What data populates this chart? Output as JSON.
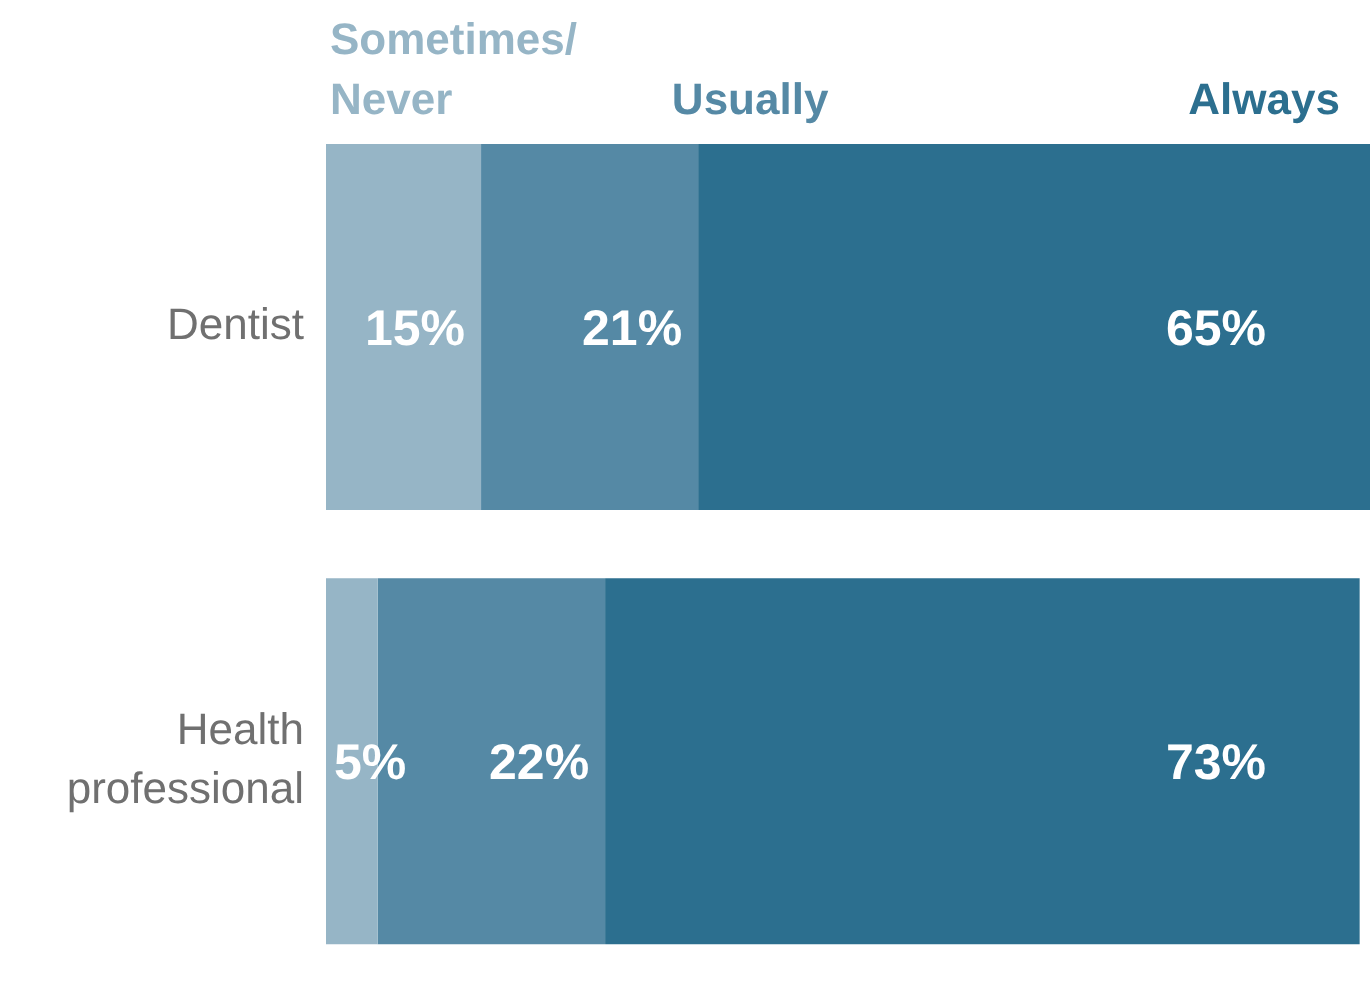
{
  "chart_data": {
    "type": "bar",
    "orientation": "horizontal",
    "stacked": true,
    "categories": [
      "Dentist",
      "Health professional"
    ],
    "series": [
      {
        "name": "Sometimes/Never",
        "color": "#96b5c6",
        "values": [
          15,
          5
        ],
        "value_labels": [
          "15%",
          "5%"
        ]
      },
      {
        "name": "Usually",
        "color": "#5589a5",
        "values": [
          21,
          22
        ],
        "value_labels": [
          "21%",
          "22%"
        ]
      },
      {
        "name": "Always",
        "color": "#2c6f8f",
        "values": [
          65,
          73
        ],
        "value_labels": [
          "65%",
          "73%"
        ]
      }
    ],
    "xlim": [
      0,
      101
    ],
    "tick_labels": "y"
  }
}
